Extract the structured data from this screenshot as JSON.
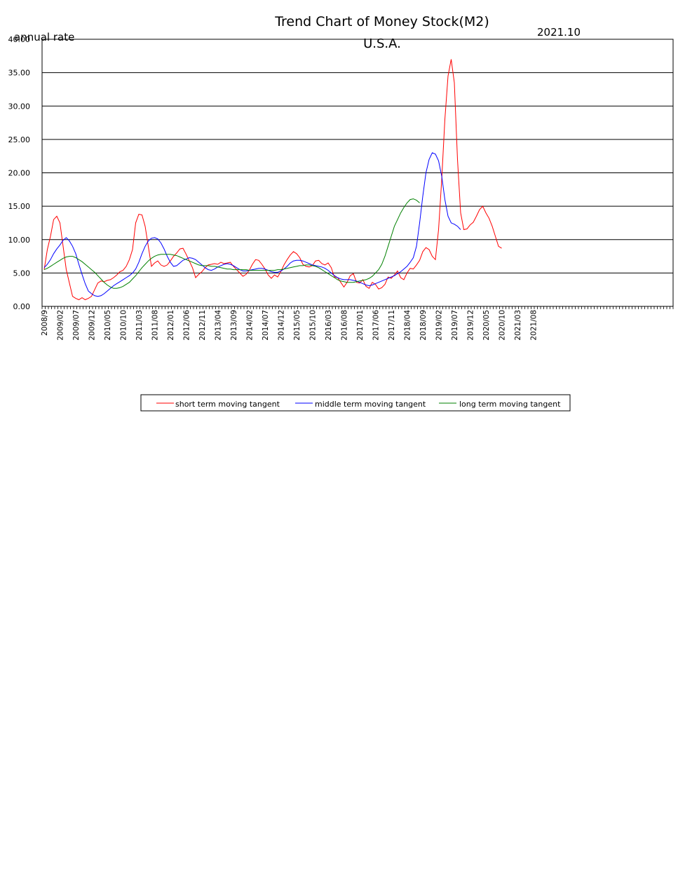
{
  "chart_data": {
    "type": "line",
    "title": "Trend Chart of Money Stock(M2)",
    "subtitle": "U.S.A.",
    "date_label": "2021.10",
    "ylabel": "annual rate",
    "ylim": [
      0,
      40
    ],
    "yticks": [
      "0.00",
      "5.00",
      "10.00",
      "15.00",
      "20.00",
      "25.00",
      "30.00",
      "35.00",
      "40.00"
    ],
    "grid": "horizontal",
    "legend_position": "bottom",
    "x_tick_labels": [
      "2008/9",
      "2009/02",
      "2009/07",
      "2009/12",
      "2010/05",
      "2010/10",
      "2011/03",
      "2011/08",
      "2012/01",
      "2012/06",
      "2012/11",
      "2013/04",
      "2013/09",
      "2014/02",
      "2014/07",
      "2014/12",
      "2015/05",
      "2015/10",
      "2016/03",
      "2016/08",
      "2017/01",
      "2017/06",
      "2017/11",
      "2018/04",
      "2018/09",
      "2019/02",
      "2019/07",
      "2019/12",
      "2020/05",
      "2020/10",
      "2021/03",
      "2021/08"
    ],
    "x_tick_start_index": 0,
    "x_tick_step": 5,
    "total_slots": 200,
    "series": [
      {
        "name": "short term moving tangent",
        "color": "#ff0000",
        "values": [
          5.5,
          8.5,
          10.5,
          13.0,
          13.5,
          12.5,
          9.0,
          5.5,
          3.5,
          1.5,
          1.2,
          1.0,
          1.3,
          1.0,
          1.2,
          1.5,
          2.5,
          3.5,
          3.8,
          3.7,
          3.9,
          4.0,
          4.3,
          4.7,
          5.2,
          5.4,
          6.0,
          7.0,
          8.5,
          12.5,
          13.8,
          13.7,
          12.0,
          9.0,
          6.0,
          6.5,
          6.8,
          6.2,
          6.0,
          6.2,
          6.8,
          7.5,
          8.0,
          8.6,
          8.7,
          7.8,
          6.8,
          5.8,
          4.3,
          4.8,
          5.2,
          5.8,
          6.2,
          6.3,
          6.4,
          6.3,
          6.6,
          6.4,
          6.5,
          6.6,
          6.0,
          5.5,
          5.0,
          4.5,
          4.8,
          5.4,
          6.3,
          7.0,
          6.9,
          6.3,
          5.6,
          4.7,
          4.2,
          4.7,
          4.4,
          5.2,
          6.2,
          7.0,
          7.7,
          8.2,
          7.9,
          7.3,
          6.3,
          6.0,
          5.9,
          6.1,
          6.8,
          6.9,
          6.4,
          6.2,
          6.5,
          5.8,
          4.4,
          4.3,
          3.6,
          2.9,
          3.6,
          4.6,
          4.9,
          3.6,
          3.5,
          4.0,
          3.0,
          2.7,
          3.6,
          3.3,
          2.6,
          2.8,
          3.3,
          4.4,
          4.2,
          4.7,
          5.3,
          4.3,
          4.0,
          5.0,
          5.7,
          5.6,
          6.2,
          6.9,
          8.2,
          8.8,
          8.5,
          7.5,
          7.0,
          11.5,
          19.0,
          28.0,
          34.5,
          37.0,
          33.5,
          22.0,
          14.0,
          11.5,
          11.6,
          12.2,
          12.6,
          13.5,
          14.5,
          15.0,
          14.0,
          13.2,
          12.0,
          10.5,
          9.0,
          8.7
        ],
        "start_index": 0
      },
      {
        "name": "middle term moving tangent",
        "color": "#0000ff",
        "values": [
          5.8,
          6.3,
          7.0,
          7.9,
          8.6,
          9.2,
          9.9,
          10.3,
          9.8,
          9.0,
          7.9,
          6.3,
          4.8,
          3.4,
          2.3,
          1.9,
          1.6,
          1.5,
          1.6,
          1.9,
          2.3,
          2.7,
          3.1,
          3.4,
          3.7,
          4.0,
          4.3,
          4.6,
          5.0,
          5.6,
          6.6,
          7.9,
          9.0,
          9.8,
          10.2,
          10.3,
          10.1,
          9.5,
          8.6,
          7.5,
          6.6,
          6.0,
          6.1,
          6.5,
          6.9,
          7.1,
          7.3,
          7.2,
          7.0,
          6.6,
          6.2,
          5.8,
          5.5,
          5.4,
          5.6,
          5.9,
          6.1,
          6.3,
          6.4,
          6.3,
          6.1,
          5.8,
          5.5,
          5.3,
          5.3,
          5.4,
          5.5,
          5.6,
          5.7,
          5.7,
          5.6,
          5.4,
          5.2,
          5.1,
          5.1,
          5.3,
          5.6,
          6.0,
          6.5,
          6.8,
          6.9,
          6.9,
          6.8,
          6.6,
          6.4,
          6.2,
          6.1,
          6.0,
          5.9,
          5.7,
          5.4,
          5.0,
          4.6,
          4.3,
          4.1,
          4.0,
          4.0,
          4.0,
          3.9,
          3.8,
          3.6,
          3.4,
          3.2,
          3.1,
          3.2,
          3.4,
          3.6,
          3.8,
          4.0,
          4.2,
          4.4,
          4.6,
          4.9,
          5.2,
          5.6,
          6.0,
          6.6,
          7.3,
          9.0,
          12.5,
          16.5,
          20.0,
          22.0,
          23.0,
          22.8,
          21.8,
          19.5,
          16.0,
          13.5,
          12.5,
          12.3,
          12.0,
          11.5
        ],
        "start_index": 0
      },
      {
        "name": "long term moving tangent",
        "color": "#008000",
        "values": [
          5.5,
          5.7,
          6.0,
          6.3,
          6.6,
          6.9,
          7.2,
          7.4,
          7.5,
          7.5,
          7.3,
          7.0,
          6.7,
          6.3,
          5.9,
          5.5,
          5.1,
          4.6,
          4.1,
          3.6,
          3.2,
          2.9,
          2.7,
          2.7,
          2.8,
          3.0,
          3.3,
          3.6,
          4.1,
          4.6,
          5.2,
          5.8,
          6.3,
          6.8,
          7.2,
          7.5,
          7.7,
          7.8,
          7.8,
          7.8,
          7.8,
          7.7,
          7.6,
          7.4,
          7.2,
          7.0,
          6.8,
          6.6,
          6.4,
          6.2,
          6.1,
          6.1,
          6.1,
          6.0,
          6.0,
          5.9,
          5.8,
          5.7,
          5.6,
          5.6,
          5.5,
          5.5,
          5.5,
          5.5,
          5.5,
          5.4,
          5.4,
          5.4,
          5.4,
          5.4,
          5.4,
          5.4,
          5.4,
          5.4,
          5.5,
          5.5,
          5.6,
          5.7,
          5.8,
          5.9,
          6.0,
          6.1,
          6.1,
          6.2,
          6.2,
          6.1,
          6.0,
          5.8,
          5.5,
          5.2,
          4.9,
          4.6,
          4.3,
          4.0,
          3.8,
          3.7,
          3.6,
          3.6,
          3.6,
          3.7,
          3.8,
          3.9,
          4.0,
          4.2,
          4.5,
          5.0,
          5.5,
          6.3,
          7.5,
          9.0,
          10.5,
          12.0,
          13.0,
          14.0,
          14.8,
          15.5,
          16.0,
          16.1,
          15.9,
          15.5
        ],
        "start_index": 0
      }
    ]
  }
}
